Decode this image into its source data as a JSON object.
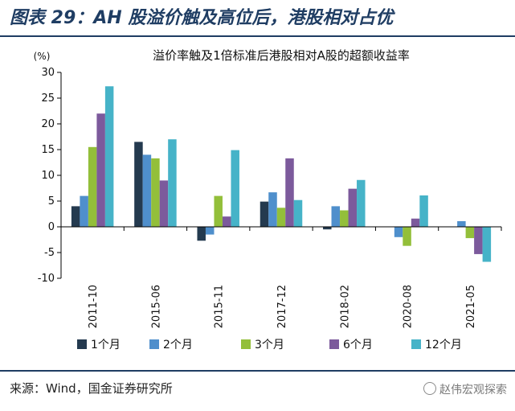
{
  "figure": {
    "title": "图表 29：AH 股溢价触及高位后，港股相对占优",
    "source": "来源：Wind，国金证券研究所",
    "watermark": "赵伟宏观探索"
  },
  "colors": {
    "header_rule": "#1f3d63",
    "series": [
      "#243a4f",
      "#4f8fcc",
      "#93bf3a",
      "#7c5a9c",
      "#46b3c8"
    ]
  },
  "chart_data": {
    "type": "bar",
    "title": "溢价率触及1倍标准后港股相对A股的超额收益率",
    "ylabel": "(%)",
    "xlabel": "",
    "ylim": [
      -10,
      30
    ],
    "yticks": [
      30,
      25,
      20,
      15,
      10,
      5,
      0,
      -5,
      -10
    ],
    "grid": false,
    "legend": "bottom",
    "categories": [
      "2011-10",
      "2015-06",
      "2015-11",
      "2017-12",
      "2018-02",
      "2020-08",
      "2021-05"
    ],
    "series": [
      {
        "name": "1个月",
        "values": [
          4.0,
          16.5,
          -2.7,
          4.9,
          -0.5,
          0.0,
          0.0
        ]
      },
      {
        "name": "2个月",
        "values": [
          6.0,
          14.0,
          -1.5,
          6.7,
          4.0,
          -2.0,
          1.1
        ]
      },
      {
        "name": "3个月",
        "values": [
          15.5,
          13.3,
          6.0,
          3.7,
          3.2,
          -3.7,
          -2.2
        ]
      },
      {
        "name": "6个月",
        "values": [
          22.0,
          9.0,
          2.0,
          13.3,
          7.4,
          1.6,
          -5.3
        ]
      },
      {
        "name": "12个月",
        "values": [
          27.3,
          17.0,
          14.9,
          5.2,
          9.1,
          6.1,
          -6.8
        ]
      }
    ]
  }
}
